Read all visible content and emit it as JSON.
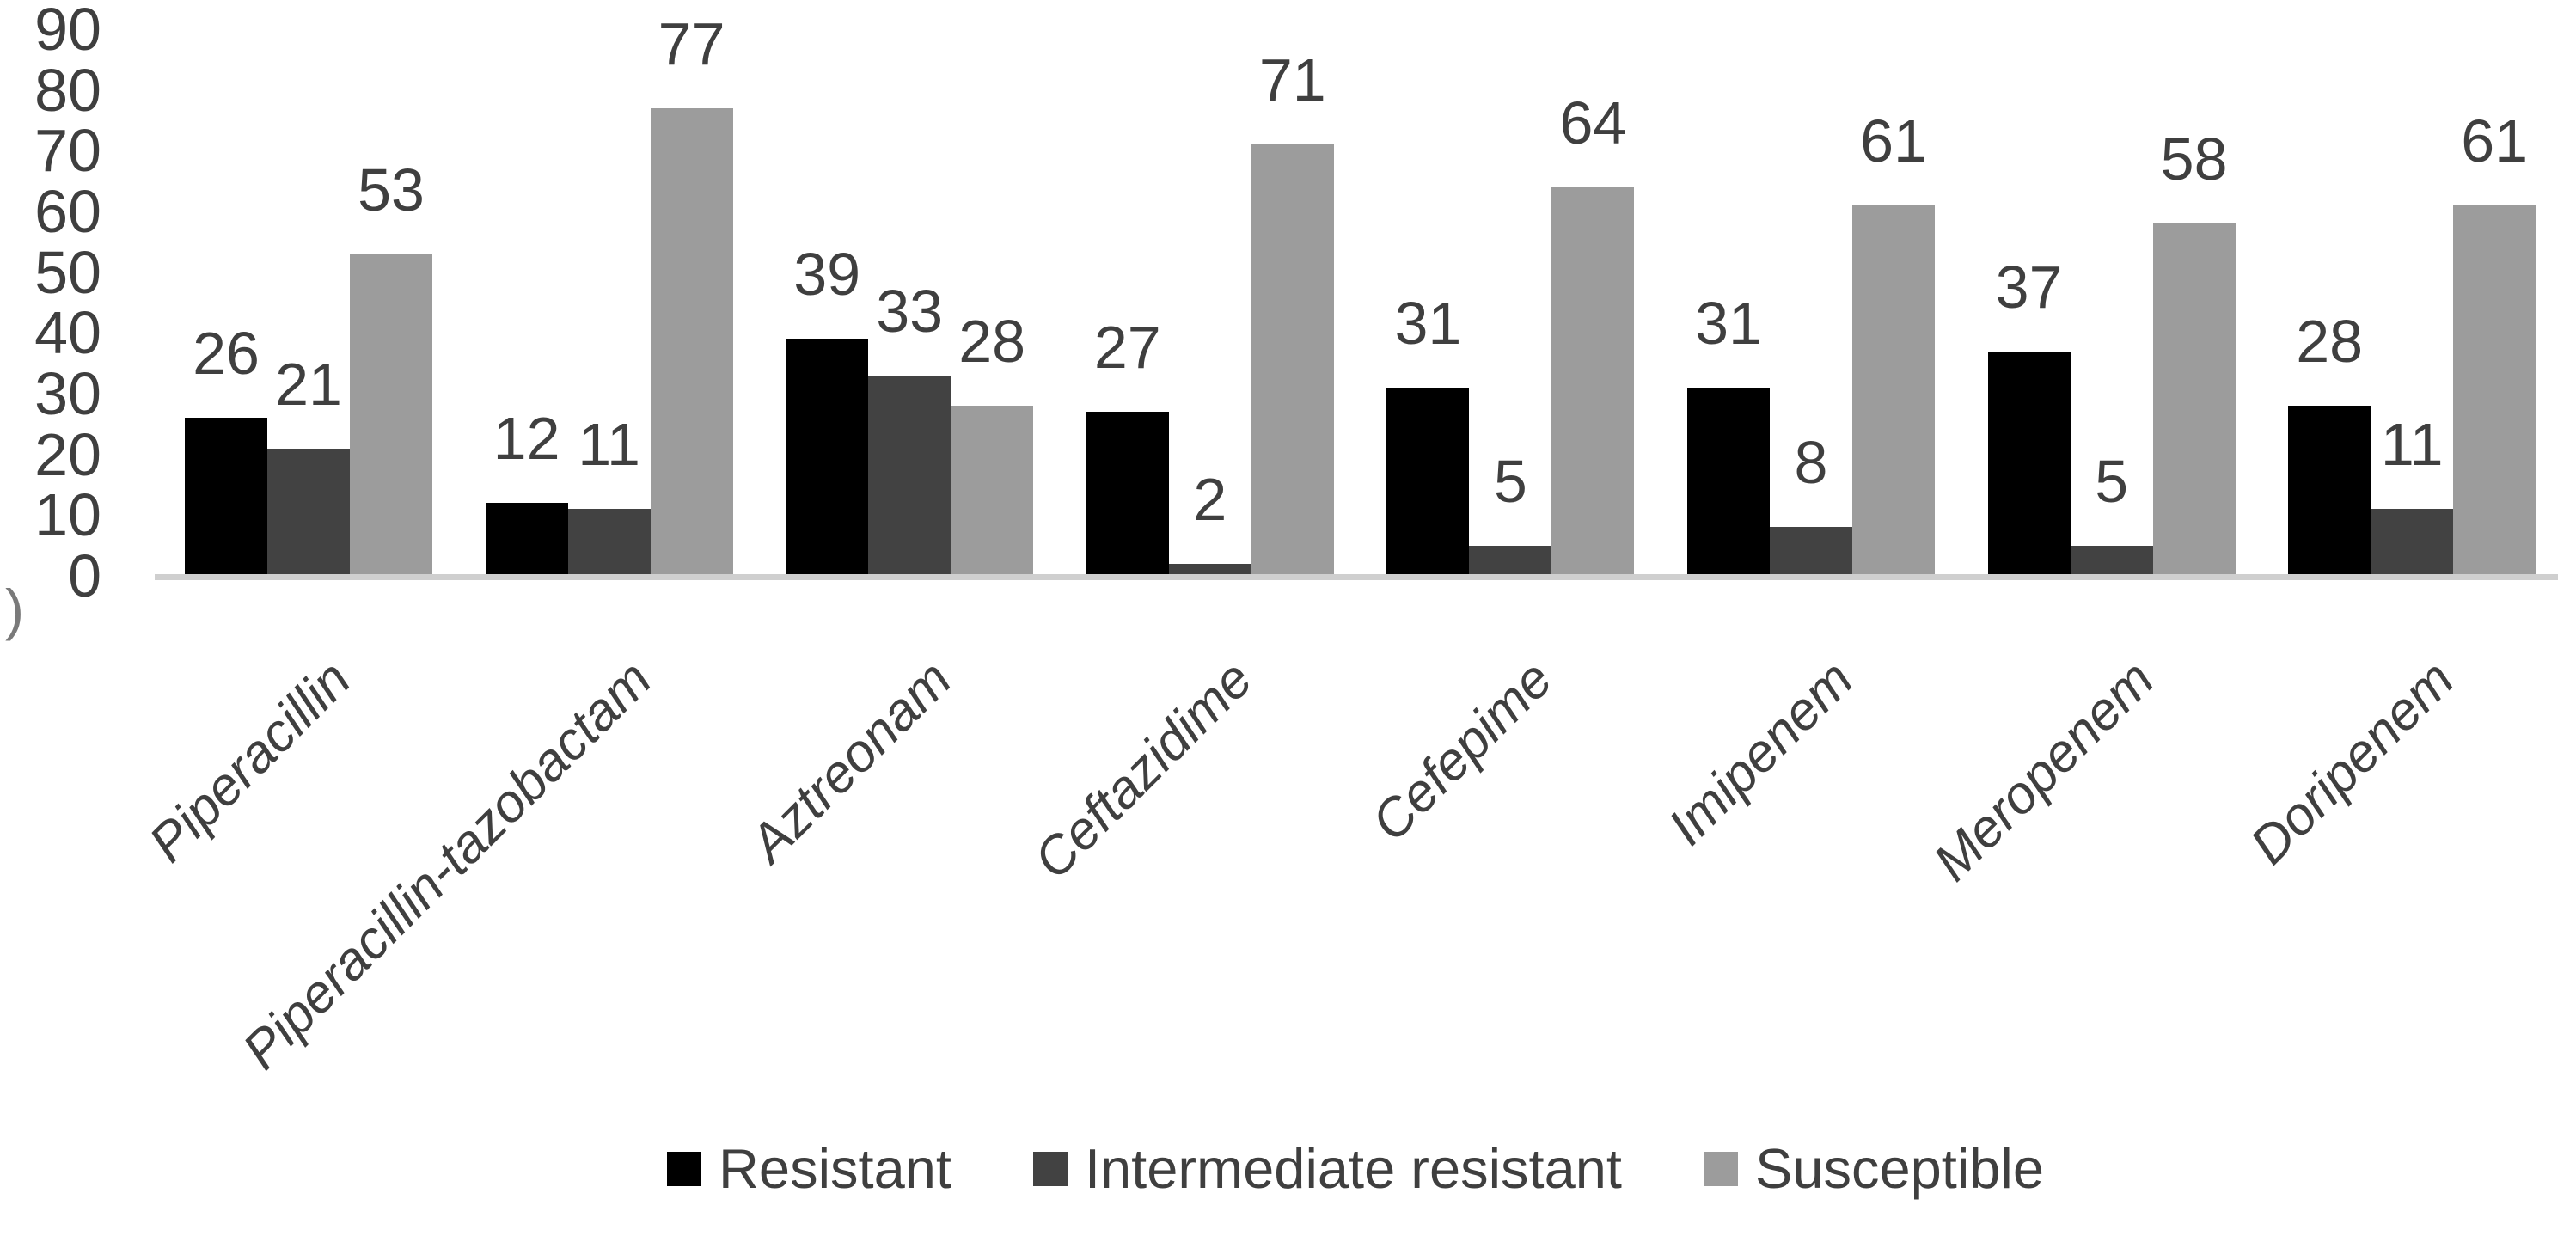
{
  "page": {
    "background": "#ffffff",
    "partial_left_text": ")"
  },
  "chart_data": {
    "type": "bar",
    "title": "",
    "xlabel": "",
    "ylabel": "",
    "categories": [
      "Piperacillin",
      "Piperacillin-tazobactam",
      "Aztreonam",
      "Ceftazidime",
      "Cefepime",
      "Imipenem",
      "Meropenem",
      "Doripenem"
    ],
    "series": [
      {
        "name": "Resistant",
        "color": "#000000",
        "values": [
          26,
          12,
          39,
          27,
          31,
          31,
          37,
          28
        ]
      },
      {
        "name": "Intermediate resistant",
        "color": "#424242",
        "values": [
          21,
          11,
          33,
          2,
          5,
          8,
          5,
          11
        ]
      },
      {
        "name": "Susceptible",
        "color": "#9c9c9c",
        "values": [
          53,
          77,
          28,
          71,
          64,
          61,
          58,
          61
        ]
      }
    ],
    "ylim": [
      0,
      90
    ],
    "yticks": [
      0,
      10,
      20,
      30,
      40,
      50,
      60,
      70,
      80,
      90
    ],
    "grid": false,
    "legend_position": "bottom",
    "data_labels": "outside-end",
    "axis_line_color": "#cfcfcf",
    "text_color": "#3f3f3f"
  }
}
